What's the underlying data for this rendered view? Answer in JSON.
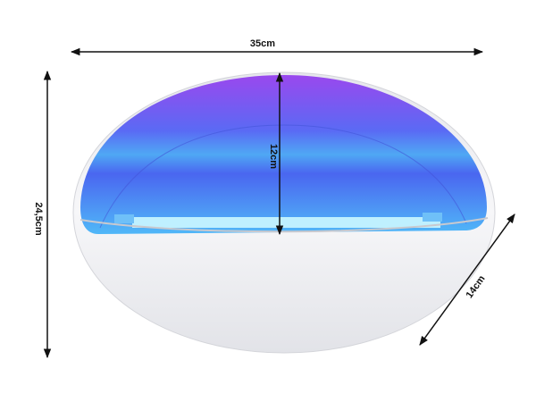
{
  "product": {
    "name_icon": "uv-nail-lamp-bowl",
    "colors": {
      "glow_top": "#9b4cf0",
      "glow_mid": "#4f6cf5",
      "glow_band": "#4fb4f5",
      "shell": "#f2f2f4"
    }
  },
  "dimensions": {
    "width": "35cm",
    "height": "24,5cm",
    "inner_height": "12cm",
    "depth": "14cm"
  }
}
